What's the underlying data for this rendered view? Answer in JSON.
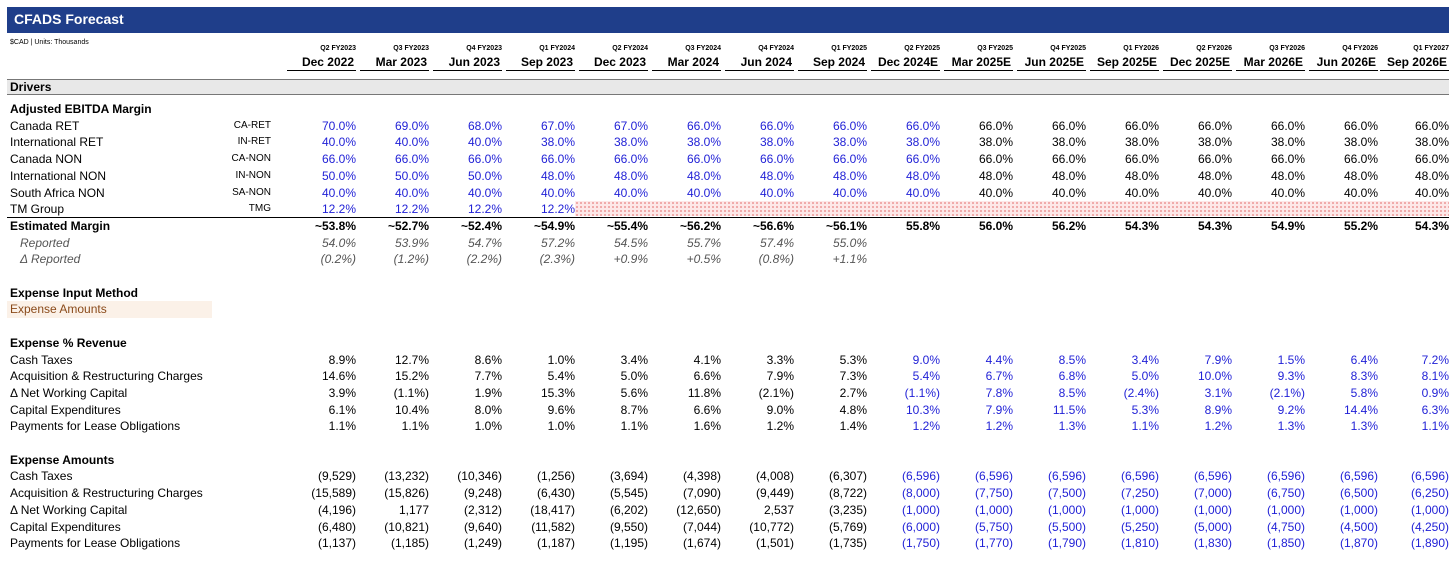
{
  "title": "CFADS Forecast",
  "units": "$CAD | Units: Thousands",
  "columns": [
    {
      "q": "Q2 FY2023",
      "d": "Dec 2022"
    },
    {
      "q": "Q3 FY2023",
      "d": "Mar 2023"
    },
    {
      "q": "Q4 FY2023",
      "d": "Jun 2023"
    },
    {
      "q": "Q1 FY2024",
      "d": "Sep 2023"
    },
    {
      "q": "Q2 FY2024",
      "d": "Dec 2023"
    },
    {
      "q": "Q3 FY2024",
      "d": "Mar 2024"
    },
    {
      "q": "Q4 FY2024",
      "d": "Jun 2024"
    },
    {
      "q": "Q1 FY2025",
      "d": "Sep 2024"
    },
    {
      "q": "Q2 FY2025",
      "d": "Dec 2024E"
    },
    {
      "q": "Q3 FY2025",
      "d": "Mar 2025E"
    },
    {
      "q": "Q4 FY2025",
      "d": "Jun 2025E"
    },
    {
      "q": "Q1 FY2026",
      "d": "Sep 2025E"
    },
    {
      "q": "Q2 FY2026",
      "d": "Dec 2025E"
    },
    {
      "q": "Q3 FY2026",
      "d": "Mar 2026E"
    },
    {
      "q": "Q4 FY2026",
      "d": "Jun 2026E"
    },
    {
      "q": "Q1 FY2027",
      "d": "Sep 2026E"
    }
  ],
  "section": "Drivers",
  "colors": {
    "input_blue": "#1f1fd6",
    "header_navy": "#1f3e8a",
    "input_box": "#fbf1e8",
    "input_text": "#8a4a1a"
  },
  "rows": [
    {
      "label": "Adjusted EBITDA Margin",
      "style": "bold",
      "code": "",
      "values": []
    },
    {
      "label": "Canada RET",
      "code": "CA-RET",
      "values": [
        "70.0%",
        "69.0%",
        "68.0%",
        "67.0%",
        "67.0%",
        "66.0%",
        "66.0%",
        "66.0%",
        "66.0%",
        "66.0%",
        "66.0%",
        "66.0%",
        "66.0%",
        "66.0%",
        "66.0%",
        "66.0%"
      ],
      "blue_upto": 9
    },
    {
      "label": "International RET",
      "code": "IN-RET",
      "values": [
        "40.0%",
        "40.0%",
        "40.0%",
        "38.0%",
        "38.0%",
        "38.0%",
        "38.0%",
        "38.0%",
        "38.0%",
        "38.0%",
        "38.0%",
        "38.0%",
        "38.0%",
        "38.0%",
        "38.0%",
        "38.0%"
      ],
      "blue_upto": 9
    },
    {
      "label": "Canada NON",
      "code": "CA-NON",
      "values": [
        "66.0%",
        "66.0%",
        "66.0%",
        "66.0%",
        "66.0%",
        "66.0%",
        "66.0%",
        "66.0%",
        "66.0%",
        "66.0%",
        "66.0%",
        "66.0%",
        "66.0%",
        "66.0%",
        "66.0%",
        "66.0%"
      ],
      "blue_upto": 9
    },
    {
      "label": "International NON",
      "code": "IN-NON",
      "values": [
        "50.0%",
        "50.0%",
        "50.0%",
        "48.0%",
        "48.0%",
        "48.0%",
        "48.0%",
        "48.0%",
        "48.0%",
        "48.0%",
        "48.0%",
        "48.0%",
        "48.0%",
        "48.0%",
        "48.0%",
        "48.0%"
      ],
      "blue_upto": 9
    },
    {
      "label": "South Africa NON",
      "code": "SA-NON",
      "values": [
        "40.0%",
        "40.0%",
        "40.0%",
        "40.0%",
        "40.0%",
        "40.0%",
        "40.0%",
        "40.0%",
        "40.0%",
        "40.0%",
        "40.0%",
        "40.0%",
        "40.0%",
        "40.0%",
        "40.0%",
        "40.0%"
      ],
      "blue_upto": 9
    },
    {
      "label": "TM Group",
      "code": "TMG",
      "values": [
        "12.2%",
        "12.2%",
        "12.2%",
        "12.2%"
      ],
      "blue_upto": 4
    },
    {
      "label": "Estimated Margin",
      "style": "bold",
      "code": "",
      "values": [
        "~53.8%",
        "~52.7%",
        "~52.4%",
        "~54.9%",
        "~55.4%",
        "~56.2%",
        "~56.6%",
        "~56.1%",
        "55.8%",
        "56.0%",
        "56.2%",
        "54.3%",
        "54.3%",
        "54.9%",
        "55.2%",
        "54.3%"
      ],
      "blue_upto": 0
    },
    {
      "label": "Reported",
      "style": "ital",
      "code": "",
      "values": [
        "54.0%",
        "53.9%",
        "54.7%",
        "57.2%",
        "54.5%",
        "55.7%",
        "57.4%",
        "55.0%"
      ],
      "grey": true
    },
    {
      "label": "Δ Reported",
      "style": "ital",
      "code": "",
      "values": [
        "(0.2%)",
        "(1.2%)",
        "(2.2%)",
        "(2.3%)",
        "+0.9%",
        "+0.5%",
        "(0.8%)",
        "+1.1%"
      ],
      "grey": true
    },
    {
      "label": "",
      "code": "",
      "values": []
    },
    {
      "label": "Expense Input Method",
      "style": "bold",
      "code": "",
      "values": []
    },
    {
      "label": "Expense Amounts",
      "style": "input",
      "code": "",
      "values": []
    },
    {
      "label": "",
      "code": "",
      "values": []
    },
    {
      "label": "Expense % Revenue",
      "style": "bold",
      "code": "",
      "values": []
    },
    {
      "label": "Cash Taxes",
      "code": "",
      "values": [
        "8.9%",
        "12.7%",
        "8.6%",
        "1.0%",
        "3.4%",
        "4.1%",
        "3.3%",
        "5.3%",
        "9.0%",
        "4.4%",
        "8.5%",
        "3.4%",
        "7.9%",
        "1.5%",
        "6.4%",
        "7.2%"
      ],
      "blue_from": 8
    },
    {
      "label": "Acquisition & Restructuring Charges",
      "code": "",
      "values": [
        "14.6%",
        "15.2%",
        "7.7%",
        "5.4%",
        "5.0%",
        "6.6%",
        "7.9%",
        "7.3%",
        "5.4%",
        "6.7%",
        "6.8%",
        "5.0%",
        "10.0%",
        "9.3%",
        "8.3%",
        "8.1%"
      ],
      "blue_from": 8
    },
    {
      "label": "Δ Net Working Capital",
      "code": "",
      "values": [
        "3.9%",
        "(1.1%)",
        "1.9%",
        "15.3%",
        "5.6%",
        "11.8%",
        "(2.1%)",
        "2.7%",
        "(1.1%)",
        "7.8%",
        "8.5%",
        "(2.4%)",
        "3.1%",
        "(2.1%)",
        "5.8%",
        "0.9%"
      ],
      "blue_from": 8
    },
    {
      "label": "Capital Expenditures",
      "code": "",
      "values": [
        "6.1%",
        "10.4%",
        "8.0%",
        "9.6%",
        "8.7%",
        "6.6%",
        "9.0%",
        "4.8%",
        "10.3%",
        "7.9%",
        "11.5%",
        "5.3%",
        "8.9%",
        "9.2%",
        "14.4%",
        "6.3%"
      ],
      "blue_from": 8
    },
    {
      "label": "Payments for Lease Obligations",
      "code": "",
      "values": [
        "1.1%",
        "1.1%",
        "1.0%",
        "1.0%",
        "1.1%",
        "1.6%",
        "1.2%",
        "1.4%",
        "1.2%",
        "1.2%",
        "1.3%",
        "1.1%",
        "1.2%",
        "1.3%",
        "1.3%",
        "1.1%"
      ],
      "blue_from": 8
    },
    {
      "label": "",
      "code": "",
      "values": []
    },
    {
      "label": "Expense Amounts",
      "style": "bold",
      "code": "",
      "values": []
    },
    {
      "label": "Cash Taxes",
      "code": "",
      "values": [
        "(9,529)",
        "(13,232)",
        "(10,346)",
        "(1,256)",
        "(3,694)",
        "(4,398)",
        "(4,008)",
        "(6,307)",
        "(6,596)",
        "(6,596)",
        "(6,596)",
        "(6,596)",
        "(6,596)",
        "(6,596)",
        "(6,596)",
        "(6,596)"
      ],
      "blue_from": 8
    },
    {
      "label": "Acquisition & Restructuring Charges",
      "code": "",
      "values": [
        "(15,589)",
        "(15,826)",
        "(9,248)",
        "(6,430)",
        "(5,545)",
        "(7,090)",
        "(9,449)",
        "(8,722)",
        "(8,000)",
        "(7,750)",
        "(7,500)",
        "(7,250)",
        "(7,000)",
        "(6,750)",
        "(6,500)",
        "(6,250)"
      ],
      "blue_from": 8
    },
    {
      "label": "Δ Net Working Capital",
      "code": "",
      "values": [
        "(4,196)",
        "1,177",
        "(2,312)",
        "(18,417)",
        "(6,202)",
        "(12,650)",
        "2,537",
        "(3,235)",
        "(1,000)",
        "(1,000)",
        "(1,000)",
        "(1,000)",
        "(1,000)",
        "(1,000)",
        "(1,000)",
        "(1,000)"
      ],
      "blue_from": 8
    },
    {
      "label": "Capital Expenditures",
      "code": "",
      "values": [
        "(6,480)",
        "(10,821)",
        "(9,640)",
        "(11,582)",
        "(9,550)",
        "(7,044)",
        "(10,772)",
        "(5,769)",
        "(6,000)",
        "(5,750)",
        "(5,500)",
        "(5,250)",
        "(5,000)",
        "(4,750)",
        "(4,500)",
        "(4,250)"
      ],
      "blue_from": 8
    },
    {
      "label": "Payments for Lease Obligations",
      "code": "",
      "values": [
        "(1,137)",
        "(1,185)",
        "(1,249)",
        "(1,187)",
        "(1,195)",
        "(1,674)",
        "(1,501)",
        "(1,735)",
        "(1,750)",
        "(1,770)",
        "(1,790)",
        "(1,810)",
        "(1,830)",
        "(1,850)",
        "(1,870)",
        "(1,890)"
      ],
      "blue_from": 8
    }
  ]
}
